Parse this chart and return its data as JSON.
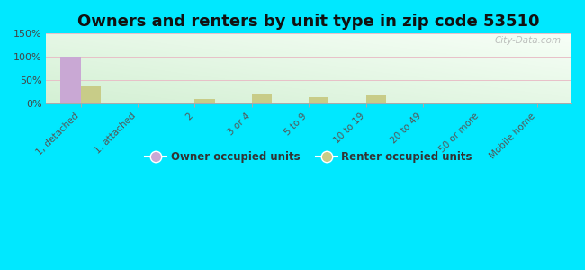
{
  "title": "Owners and renters by unit type in zip code 53510",
  "categories": [
    "1, detached",
    "1, attached",
    "2",
    "3 or 4",
    "5 to 9",
    "10 to 19",
    "20 to 49",
    "50 or more",
    "Mobile home"
  ],
  "owner_values": [
    100,
    0,
    0,
    0,
    0,
    0,
    0,
    0,
    0
  ],
  "renter_values": [
    36,
    0,
    9,
    18,
    13,
    16,
    0,
    0,
    2
  ],
  "owner_color": "#c9a8d4",
  "renter_color": "#c8cc88",
  "bg_color_top_left": "#d4efd4",
  "bg_color_bottom_right": "#f8fff8",
  "outer_bg": "#00e8ff",
  "ylim": [
    0,
    150
  ],
  "yticks": [
    0,
    50,
    100,
    150
  ],
  "ytick_labels": [
    "0%",
    "50%",
    "100%",
    "150%"
  ],
  "bar_width": 0.35,
  "title_fontsize": 13,
  "legend_labels": [
    "Owner occupied units",
    "Renter occupied units"
  ],
  "watermark": "City-Data.com"
}
